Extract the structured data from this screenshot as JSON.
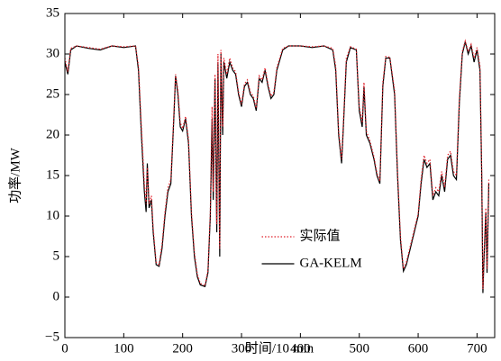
{
  "chart_data": {
    "type": "line",
    "x_label": "时间/10 min",
    "y_label": "功率/MW",
    "x": [
      0,
      5,
      10,
      20,
      40,
      60,
      80,
      100,
      120,
      125,
      130,
      135,
      138,
      140,
      143,
      147,
      150,
      155,
      160,
      165,
      170,
      175,
      180,
      185,
      188,
      192,
      196,
      200,
      205,
      210,
      215,
      220,
      225,
      230,
      238,
      243,
      247,
      250,
      252,
      255,
      258,
      260,
      263,
      265,
      268,
      270,
      275,
      280,
      285,
      290,
      295,
      300,
      305,
      310,
      315,
      320,
      325,
      330,
      335,
      340,
      345,
      350,
      355,
      360,
      370,
      380,
      400,
      420,
      440,
      455,
      460,
      465,
      470,
      473,
      478,
      485,
      495,
      500,
      505,
      508,
      512,
      518,
      525,
      530,
      535,
      540,
      545,
      552,
      560,
      565,
      570,
      575,
      580,
      590,
      600,
      605,
      610,
      615,
      620,
      625,
      630,
      635,
      640,
      645,
      650,
      655,
      660,
      665,
      670,
      675,
      680,
      685,
      690,
      695,
      700,
      705,
      708,
      710,
      712,
      715,
      717,
      720
    ],
    "series": [
      {
        "name": "实际值",
        "color": "#e0202a",
        "dash": "dotted",
        "values": [
          29.5,
          27.8,
          30.7,
          31,
          30.8,
          30.6,
          31,
          30.9,
          31,
          28.5,
          21,
          14,
          11.5,
          16,
          11.5,
          12.5,
          8.5,
          4.3,
          4,
          6.5,
          10.5,
          13.5,
          14.5,
          22.5,
          27.5,
          25.5,
          21.5,
          20.8,
          22.3,
          19.5,
          10.5,
          5.5,
          2.8,
          1.7,
          1.4,
          3.3,
          10.5,
          23.5,
          13,
          27.5,
          9,
          30,
          6,
          30.5,
          21,
          29.5,
          27.5,
          29.5,
          28.3,
          27.8,
          25.3,
          23.8,
          26.3,
          26.8,
          25.3,
          24.8,
          23.3,
          27.3,
          26.8,
          28.3,
          26.3,
          24.8,
          25.3,
          28.3,
          30.7,
          31,
          31,
          30.9,
          31,
          30.7,
          28.5,
          20.5,
          17,
          21.5,
          29.5,
          30.9,
          30.6,
          23.5,
          21.5,
          26.5,
          20.5,
          19.3,
          17.3,
          15.3,
          14.3,
          26.5,
          29.7,
          29.6,
          25.5,
          15.5,
          7.5,
          3.5,
          4.3,
          7.3,
          10.3,
          14.5,
          17.5,
          16.5,
          17,
          12.5,
          13.5,
          13,
          15.5,
          13.5,
          17.5,
          18,
          15.5,
          15,
          24.5,
          30.3,
          31.6,
          30.3,
          31.2,
          29.5,
          30.8,
          28.5,
          15.5,
          1,
          5.5,
          11,
          3.5,
          14.5
        ]
      },
      {
        "name": "GA-KELM",
        "color": "#000000",
        "dash": "solid",
        "values": [
          29,
          27.5,
          30.5,
          31,
          30.7,
          30.5,
          31,
          30.8,
          31,
          28,
          20,
          13,
          10.5,
          16.5,
          11,
          12,
          8,
          4,
          3.8,
          6,
          10,
          13,
          14,
          22,
          27.3,
          25,
          21,
          20.5,
          22,
          19,
          10,
          5,
          2.5,
          1.5,
          1.3,
          3,
          10,
          22,
          12,
          27,
          8,
          29,
          5,
          30,
          20,
          29,
          27,
          29,
          28,
          27.5,
          25,
          23.5,
          26,
          26.5,
          25,
          24.5,
          23,
          27,
          26.5,
          28,
          26,
          24.5,
          25,
          28,
          30.5,
          31,
          31,
          30.8,
          31,
          30.5,
          28,
          20,
          16.5,
          21,
          29,
          30.8,
          30.5,
          23,
          21,
          26,
          20,
          19,
          17,
          15,
          14,
          26,
          29.5,
          29.5,
          25,
          15,
          7,
          3.2,
          4,
          7,
          10,
          14,
          17,
          16,
          16.5,
          12,
          13,
          12.5,
          15,
          13,
          17,
          17.5,
          15,
          14.5,
          24,
          30,
          31.5,
          30,
          31,
          29,
          30.5,
          28,
          15,
          0.5,
          5,
          10.5,
          3,
          14
        ]
      }
    ],
    "xlim": [
      0,
      730
    ],
    "xticks": [
      0,
      100,
      200,
      300,
      400,
      500,
      600,
      700
    ],
    "ylim": [
      -5,
      35
    ],
    "yticks": [
      {
        "value": -5,
        "label": "−5"
      },
      0,
      5,
      10,
      15,
      20,
      25,
      30,
      35
    ],
    "legend": "lower center"
  }
}
